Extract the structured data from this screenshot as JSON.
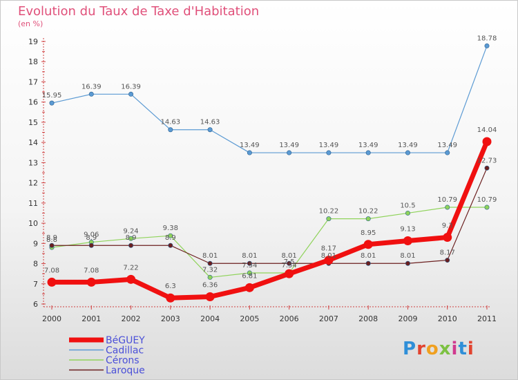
{
  "header": {
    "title": "Evolution du Taux de Taxe d'Habitation",
    "unit": "(en %)"
  },
  "logo": {
    "text": "Proxiti",
    "colors": [
      "#2f8fd8",
      "#e2432f",
      "#f0a020",
      "#7cc142",
      "#d03a8f",
      "#2f8fd8",
      "#e2432f"
    ]
  },
  "chart_data": {
    "type": "line",
    "title": "Evolution du Taux de Taxe d'Habitation",
    "ylabel": "(en %)",
    "x": [
      "2000",
      "2001",
      "2002",
      "2003",
      "2004",
      "2005",
      "2006",
      "2007",
      "2008",
      "2009",
      "2010",
      "2011"
    ],
    "ylim": [
      6,
      19
    ],
    "yticks": [
      "6",
      "7",
      "8",
      "9",
      "10",
      "11",
      "12",
      "13",
      "14",
      "15",
      "16",
      "17",
      "18",
      "19"
    ],
    "grid": false,
    "legend_position": "bottom-left",
    "series": [
      {
        "name": "Cadillac",
        "color": "#5b9ad3",
        "values": [
          15.95,
          16.39,
          16.39,
          14.63,
          14.63,
          13.49,
          13.49,
          13.49,
          13.49,
          13.49,
          13.49,
          18.78
        ],
        "labels": [
          "15.95",
          "16.39",
          "16.39",
          "14.63",
          "14.63",
          "13.49",
          "13.49",
          "13.49",
          "13.49",
          "13.49",
          "13.49",
          "18.78"
        ]
      },
      {
        "name": "Cérons",
        "color": "#8fd35a",
        "values": [
          8.8,
          9.06,
          9.24,
          9.38,
          7.32,
          7.54,
          7.54,
          10.22,
          10.22,
          10.5,
          10.79,
          10.79
        ],
        "labels": [
          "8.8",
          "9.06",
          "9.24",
          "9.38",
          "7.32",
          "7.54",
          "7.54",
          "10.22",
          "10.22",
          "10.5",
          "10.79",
          "10.79"
        ]
      },
      {
        "name": "Laroque",
        "color": "#6b1f1f",
        "values": [
          8.9,
          8.9,
          8.9,
          8.9,
          8.01,
          8.01,
          8.01,
          8.01,
          8.01,
          8.01,
          8.17,
          12.73
        ],
        "labels": [
          "8.9",
          "8.9",
          "8.9",
          "8.9",
          "8.01",
          "8.01",
          "8.01",
          "8.01",
          "8.01",
          "8.01",
          "8.17",
          "12.73"
        ]
      },
      {
        "name": "BéGUEY",
        "color": "#f01010",
        "values": [
          7.08,
          7.08,
          7.22,
          6.3,
          6.36,
          6.81,
          7.5,
          8.17,
          8.95,
          9.13,
          9.3,
          14.04
        ],
        "labels": [
          "7.08",
          "7.08",
          "7.22",
          "6.3",
          "6.36",
          "6.81",
          "7.5",
          "8.17",
          "8.95",
          "9.13",
          "9.3",
          "14.04"
        ]
      }
    ],
    "legend": [
      "BéGUEY",
      "Cadillac",
      "Cérons",
      "Laroque"
    ]
  }
}
